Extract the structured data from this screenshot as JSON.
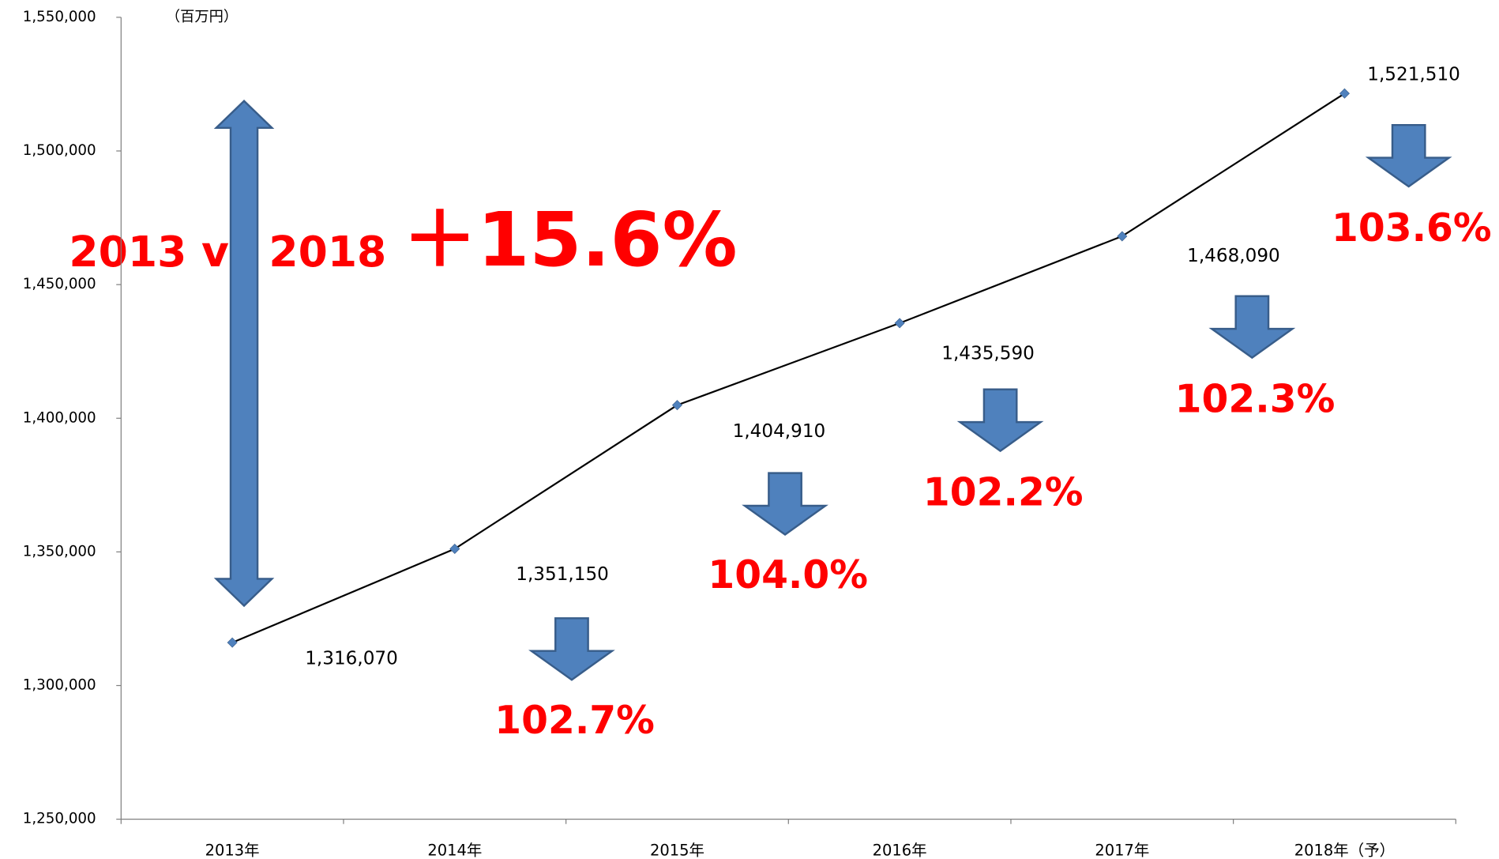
{
  "chart_data": {
    "type": "line",
    "unit_label": "（百万円）",
    "categories": [
      "2013年",
      "2014年",
      "2015年",
      "2016年",
      "2017年",
      "2018年（予）"
    ],
    "values": [
      1316070,
      1351150,
      1404910,
      1435590,
      1468090,
      1521510
    ],
    "value_labels": [
      "1,316,070",
      "1,351,150",
      "1,404,910",
      "1,435,590",
      "1,468,090",
      "1,521,510"
    ],
    "growth_labels": [
      null,
      "102.7%",
      "104.0%",
      "102.2%",
      "102.3%",
      "103.6%"
    ],
    "comparison_label": "2013 vs 2018",
    "comparison_value": "＋15.6%",
    "color": "#000000",
    "marker_color": "#4f81bd",
    "ylim": [
      1250000,
      1550000
    ],
    "yticks": [
      {
        "value": 1250000,
        "label": "1,250,000"
      },
      {
        "value": 1300000,
        "label": "1,300,000"
      },
      {
        "value": 1350000,
        "label": "1,350,000"
      },
      {
        "value": 1400000,
        "label": "1,400,000"
      },
      {
        "value": 1450000,
        "label": "1,450,000"
      },
      {
        "value": 1500000,
        "label": "1,500,000"
      },
      {
        "value": 1550000,
        "label": "1,550,000"
      }
    ]
  }
}
